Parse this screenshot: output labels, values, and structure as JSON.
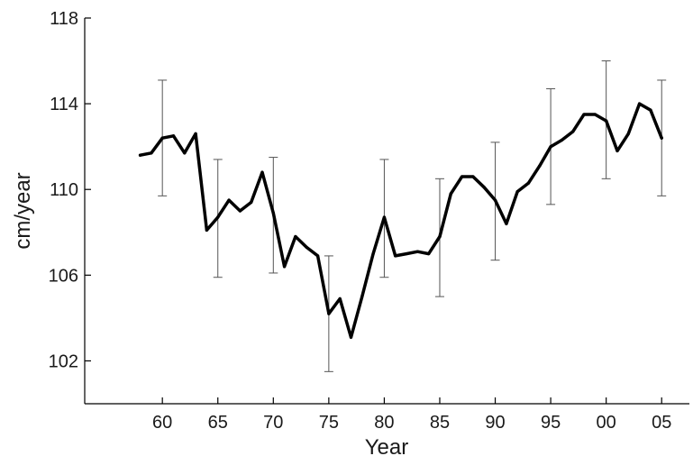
{
  "chart_data": {
    "type": "line",
    "xlabel": "Year",
    "ylabel": "cm/year",
    "xlim": [
      1953,
      2007.5
    ],
    "ylim": [
      100,
      118
    ],
    "grid": false,
    "xticks": [
      {
        "value": 1960,
        "label": "60"
      },
      {
        "value": 1965,
        "label": "65"
      },
      {
        "value": 1970,
        "label": "70"
      },
      {
        "value": 1975,
        "label": "75"
      },
      {
        "value": 1980,
        "label": "80"
      },
      {
        "value": 1985,
        "label": "85"
      },
      {
        "value": 1990,
        "label": "90"
      },
      {
        "value": 1995,
        "label": "95"
      },
      {
        "value": 2000,
        "label": "00"
      },
      {
        "value": 2005,
        "label": "05"
      }
    ],
    "yticks": [
      {
        "value": 102,
        "label": "102"
      },
      {
        "value": 106,
        "label": "106"
      },
      {
        "value": 110,
        "label": "110"
      },
      {
        "value": 114,
        "label": "114"
      },
      {
        "value": 118,
        "label": "118"
      }
    ],
    "series": [
      {
        "x": [
          1958,
          1959,
          1960,
          1961,
          1962,
          1963,
          1964,
          1965,
          1966,
          1967,
          1968,
          1969,
          1970,
          1971,
          1972,
          1973,
          1974,
          1975,
          1976,
          1977,
          1978,
          1979,
          1980,
          1981,
          1982,
          1983,
          1984,
          1985,
          1986,
          1987,
          1988,
          1989,
          1990,
          1991,
          1992,
          1993,
          1994,
          1995,
          1996,
          1997,
          1998,
          1999,
          2000,
          2001,
          2002,
          2003,
          2004,
          2005
        ],
        "y": [
          111.6,
          111.7,
          112.4,
          112.5,
          111.7,
          112.6,
          108.1,
          108.7,
          109.5,
          109.0,
          109.4,
          110.8,
          108.9,
          106.4,
          107.8,
          107.3,
          106.9,
          104.2,
          104.9,
          103.1,
          105.0,
          107.0,
          108.7,
          106.9,
          107.0,
          107.1,
          107.0,
          107.8,
          109.8,
          110.6,
          110.6,
          110.1,
          109.5,
          108.4,
          109.9,
          110.3,
          111.1,
          112.0,
          112.3,
          112.7,
          113.5,
          113.5,
          113.2,
          111.8,
          112.6,
          114.0,
          113.7,
          112.4
        ],
        "color": "#000000"
      }
    ],
    "error_bars": [
      {
        "x": 1960,
        "low": 109.7,
        "high": 115.1
      },
      {
        "x": 1965,
        "low": 105.9,
        "high": 111.4
      },
      {
        "x": 1970,
        "low": 106.1,
        "high": 111.5
      },
      {
        "x": 1975,
        "low": 101.5,
        "high": 106.9
      },
      {
        "x": 1980,
        "low": 105.9,
        "high": 111.4
      },
      {
        "x": 1985,
        "low": 105.0,
        "high": 110.5
      },
      {
        "x": 1990,
        "low": 106.7,
        "high": 112.2
      },
      {
        "x": 1995,
        "low": 109.3,
        "high": 114.7
      },
      {
        "x": 2000,
        "low": 110.5,
        "high": 116.0
      },
      {
        "x": 2005,
        "low": 109.7,
        "high": 115.1
      }
    ]
  }
}
